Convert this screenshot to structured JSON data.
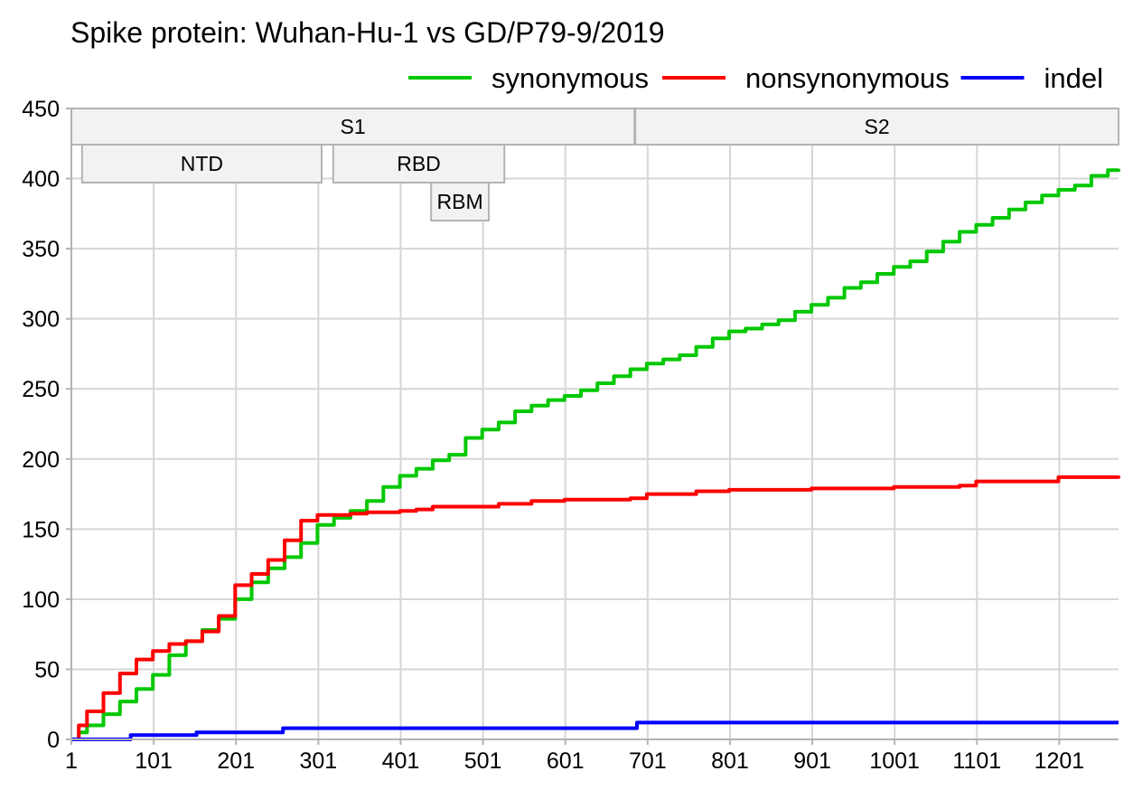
{
  "chart_data": {
    "type": "line",
    "title": "Spike protein: Wuhan-Hu-1 vs GD/P79-9/2019",
    "xlabel": "",
    "ylabel": "",
    "xlim": [
      1,
      1273
    ],
    "ylim": [
      0,
      450
    ],
    "x_ticks": [
      1,
      101,
      201,
      301,
      401,
      501,
      601,
      701,
      801,
      901,
      1001,
      1101,
      1201
    ],
    "y_ticks": [
      0,
      50,
      100,
      150,
      200,
      250,
      300,
      350,
      400,
      450
    ],
    "grid": true,
    "legend_position": "top-right",
    "regions": [
      {
        "label": "S1",
        "start": 1,
        "end": 685,
        "row": 0
      },
      {
        "label": "S2",
        "start": 686,
        "end": 1273,
        "row": 0
      },
      {
        "label": "NTD",
        "start": 14,
        "end": 305,
        "row": 1
      },
      {
        "label": "RBD",
        "start": 319,
        "end": 527,
        "row": 1
      },
      {
        "label": "RBM",
        "start": 438,
        "end": 508,
        "row": 2
      }
    ],
    "series": [
      {
        "name": "synonymous",
        "color": "#00c800",
        "x": [
          1,
          10,
          20,
          40,
          60,
          80,
          100,
          120,
          140,
          160,
          180,
          200,
          220,
          240,
          260,
          280,
          300,
          320,
          340,
          360,
          380,
          400,
          420,
          440,
          460,
          480,
          500,
          520,
          540,
          560,
          580,
          600,
          620,
          640,
          660,
          680,
          700,
          720,
          740,
          760,
          780,
          800,
          820,
          840,
          860,
          880,
          900,
          920,
          940,
          960,
          980,
          1000,
          1020,
          1040,
          1060,
          1080,
          1100,
          1120,
          1140,
          1160,
          1180,
          1200,
          1220,
          1240,
          1260,
          1273
        ],
        "values": [
          0,
          5,
          10,
          18,
          27,
          36,
          46,
          60,
          70,
          78,
          86,
          100,
          112,
          122,
          130,
          140,
          153,
          158,
          163,
          170,
          180,
          188,
          193,
          199,
          203,
          215,
          221,
          226,
          234,
          238,
          242,
          245,
          249,
          254,
          259,
          264,
          268,
          271,
          274,
          280,
          286,
          291,
          293,
          296,
          299,
          305,
          310,
          315,
          322,
          326,
          332,
          337,
          341,
          348,
          355,
          362,
          367,
          372,
          378,
          383,
          388,
          392,
          395,
          402,
          406,
          407
        ]
      },
      {
        "name": "nonsynonymous",
        "color": "#ff0000",
        "x": [
          1,
          10,
          20,
          40,
          60,
          80,
          100,
          120,
          140,
          160,
          180,
          200,
          220,
          240,
          260,
          280,
          300,
          320,
          340,
          360,
          380,
          400,
          420,
          440,
          460,
          480,
          500,
          520,
          560,
          600,
          640,
          680,
          700,
          760,
          800,
          900,
          1000,
          1080,
          1100,
          1200,
          1273
        ],
        "values": [
          0,
          10,
          20,
          33,
          47,
          57,
          63,
          68,
          70,
          77,
          88,
          110,
          118,
          128,
          142,
          156,
          160,
          160,
          161,
          162,
          162,
          163,
          164,
          166,
          166,
          166,
          166,
          168,
          170,
          171,
          171,
          172,
          175,
          177,
          178,
          179,
          180,
          181,
          184,
          187,
          188
        ]
      },
      {
        "name": "indel",
        "color": "#0000ff",
        "x": [
          1,
          70,
          73,
          150,
          153,
          255,
          258,
          685,
          688,
          1273
        ],
        "values": [
          0,
          0,
          3,
          3,
          5,
          5,
          8,
          8,
          12,
          12
        ]
      }
    ]
  }
}
